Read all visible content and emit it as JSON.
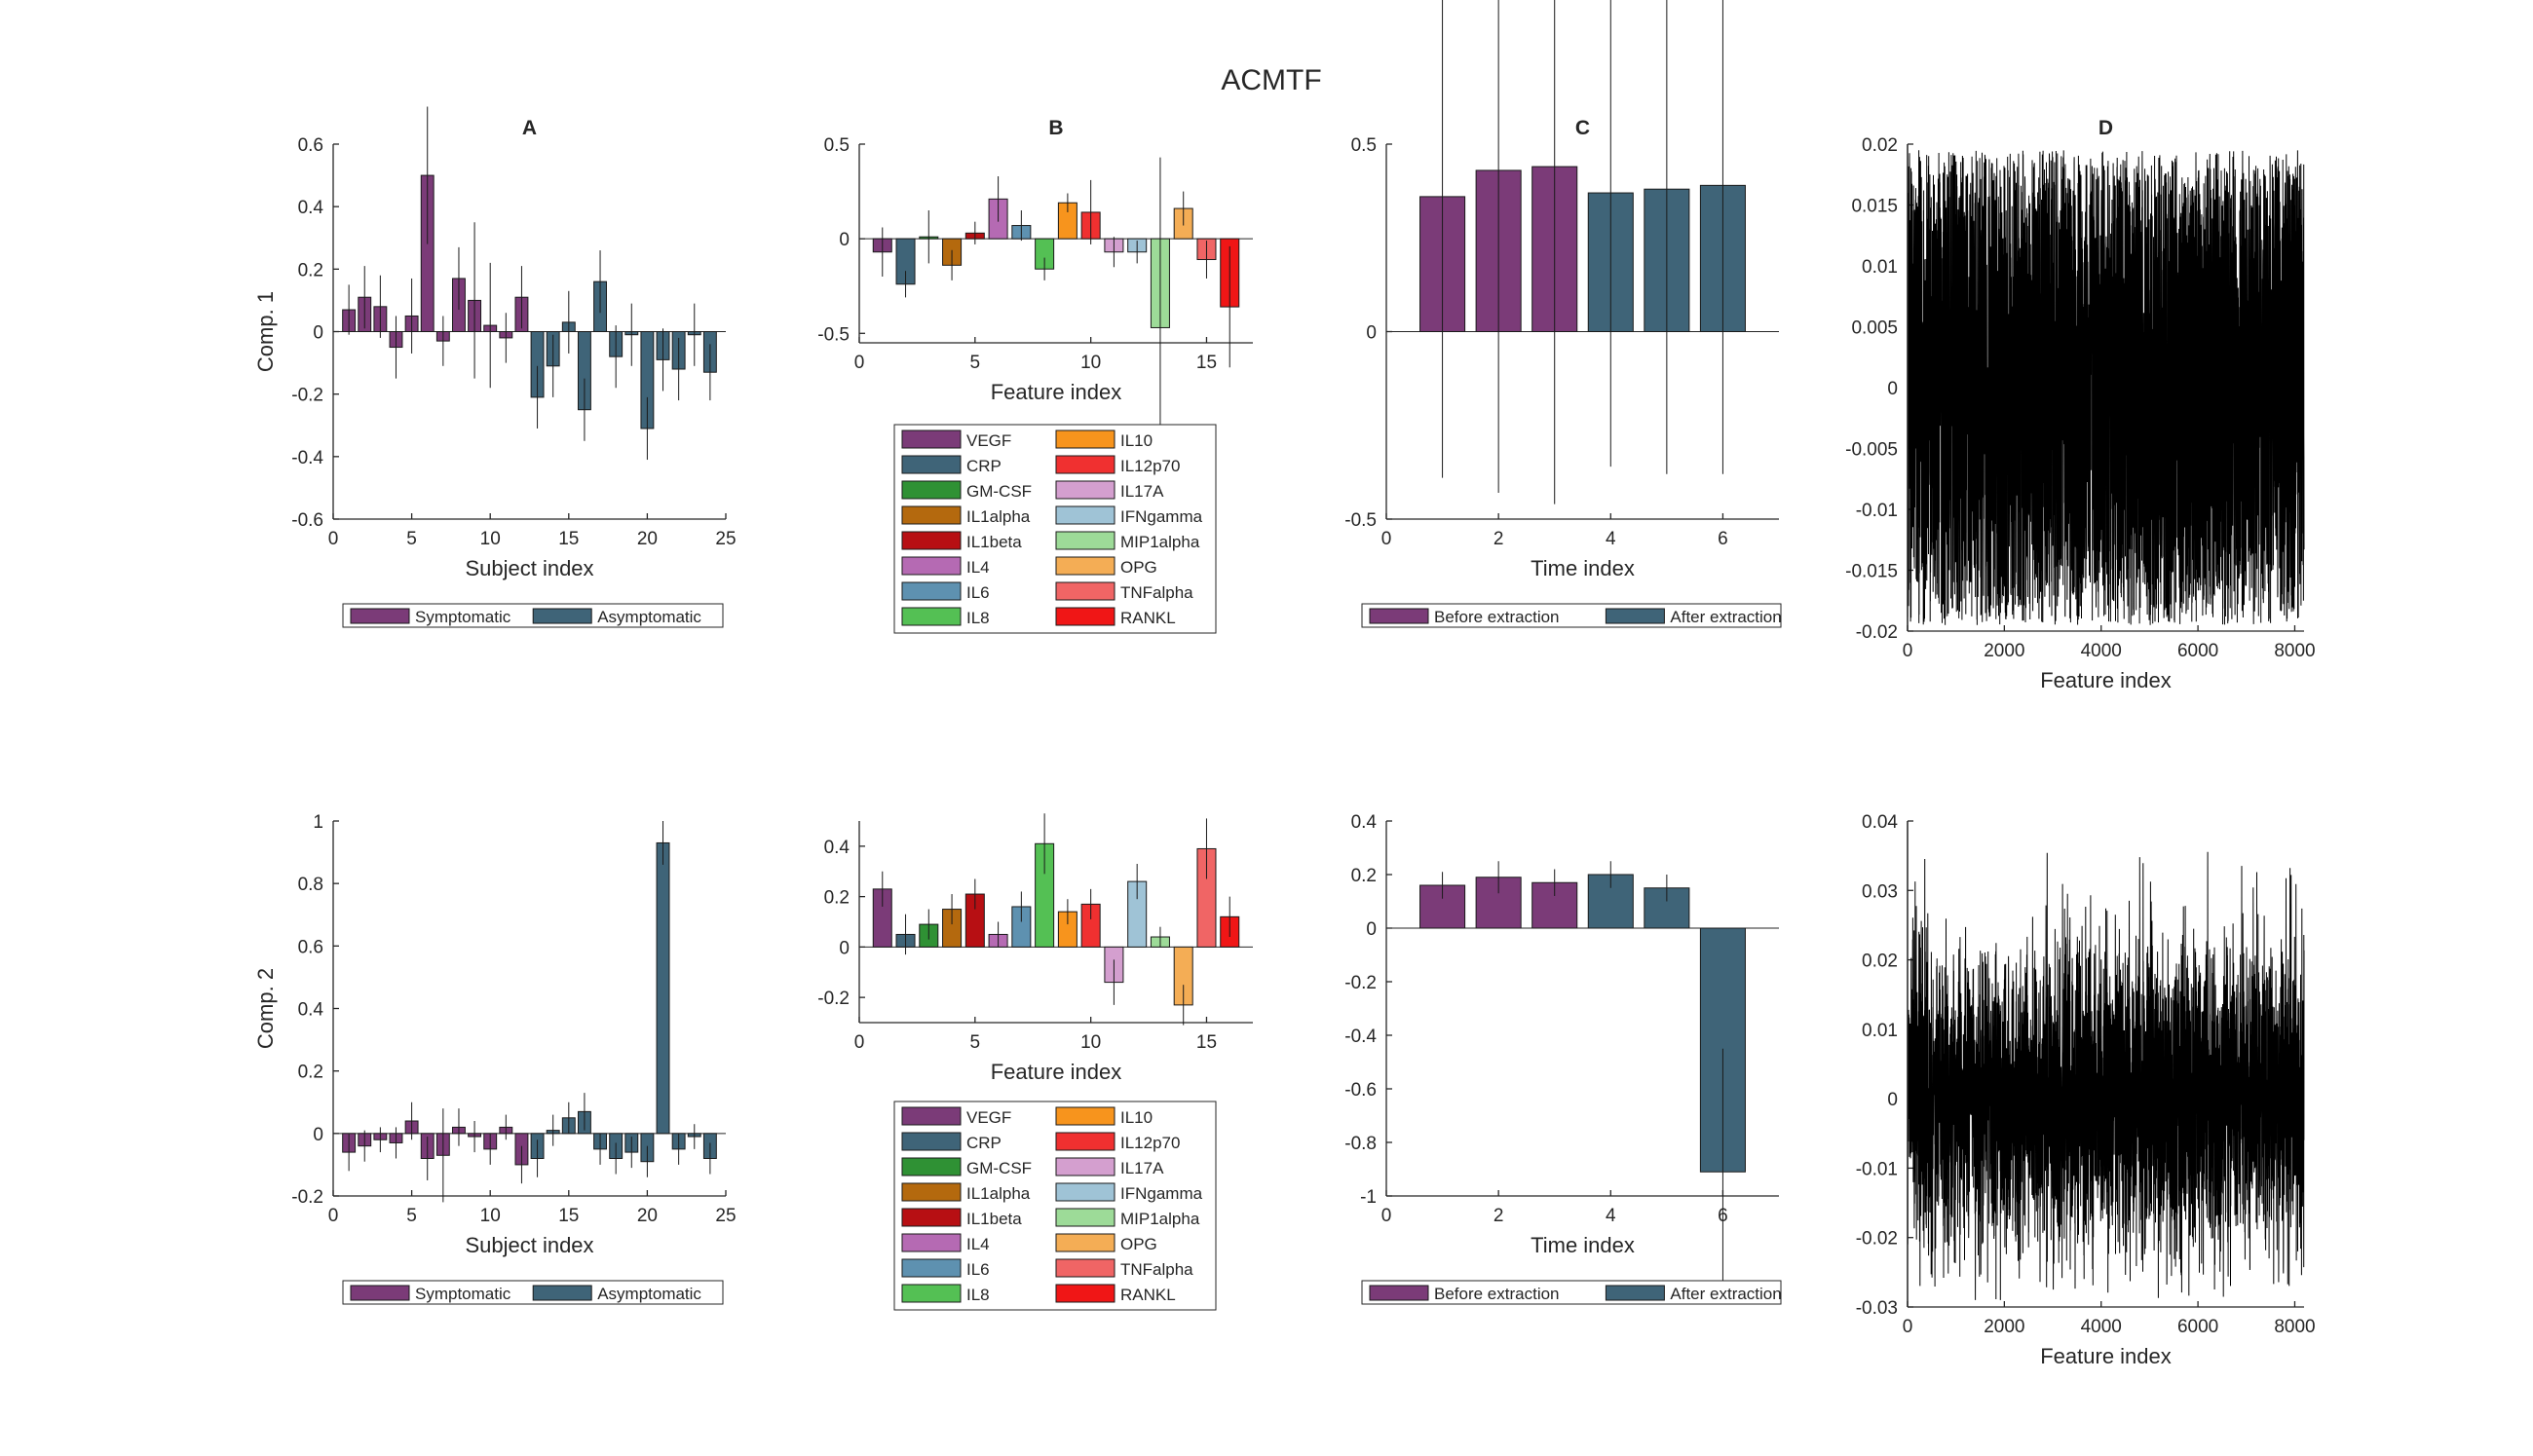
{
  "figure": {
    "title": "ACMTF"
  },
  "colors": {
    "symptomatic": "#7b3b78",
    "asymptomatic": "#3f6478",
    "before_extraction": "#7b3b78",
    "after_extraction": "#3f6478",
    "features": [
      "#7b3b78",
      "#3f6478",
      "#2f9134",
      "#b4690e",
      "#b70f13",
      "#b56ab3",
      "#5e91b0",
      "#54c054",
      "#f7941d",
      "#f03030",
      "#d49fcf",
      "#9fc3d6",
      "#9ddb98",
      "#f4ad55",
      "#f06565",
      "#f01616"
    ]
  },
  "legends": {
    "subjects": [
      "Symptomatic",
      "Asymptomatic"
    ],
    "time": [
      "Before extraction",
      "After extraction"
    ],
    "features": [
      "VEGF",
      "CRP",
      "GM-CSF",
      "IL1alpha",
      "IL1beta",
      "IL4",
      "IL6",
      "IL8",
      "IL10",
      "IL12p70",
      "IL17A",
      "IFNgamma",
      "MIP1alpha",
      "OPG",
      "TNFalpha",
      "RANKL"
    ]
  },
  "chart_data": [
    {
      "id": "A1",
      "type": "bar",
      "title": "A",
      "xlabel": "Subject index",
      "ylabel": "Comp. 1",
      "xlim": [
        0,
        25
      ],
      "ylim": [
        -0.6,
        0.6
      ],
      "xticks": [
        "0",
        "5",
        "10",
        "15",
        "20",
        "25"
      ],
      "yticks": [
        "-0.6",
        "-0.4",
        "-0.2",
        "0",
        "0.2",
        "0.4",
        "0.6"
      ],
      "x": [
        1,
        2,
        3,
        4,
        5,
        6,
        7,
        8,
        9,
        10,
        11,
        12,
        13,
        14,
        15,
        16,
        17,
        18,
        19,
        20,
        21,
        22,
        23,
        24
      ],
      "values": [
        0.07,
        0.11,
        0.08,
        -0.05,
        0.05,
        0.5,
        -0.03,
        0.17,
        0.1,
        0.02,
        -0.02,
        0.11,
        -0.21,
        -0.11,
        0.03,
        -0.25,
        0.16,
        -0.08,
        -0.01,
        -0.31,
        -0.09,
        -0.12,
        -0.01,
        -0.13
      ],
      "error": [
        0.08,
        0.1,
        0.1,
        0.1,
        0.12,
        0.22,
        0.08,
        0.1,
        0.25,
        0.2,
        0.08,
        0.1,
        0.1,
        0.1,
        0.1,
        0.1,
        0.1,
        0.1,
        0.1,
        0.1,
        0.1,
        0.1,
        0.1,
        0.09
      ],
      "groups": [
        "Symptomatic",
        "Symptomatic",
        "Symptomatic",
        "Symptomatic",
        "Symptomatic",
        "Symptomatic",
        "Symptomatic",
        "Symptomatic",
        "Symptomatic",
        "Symptomatic",
        "Symptomatic",
        "Symptomatic",
        "Asymptomatic",
        "Asymptomatic",
        "Asymptomatic",
        "Asymptomatic",
        "Asymptomatic",
        "Asymptomatic",
        "Asymptomatic",
        "Asymptomatic",
        "Asymptomatic",
        "Asymptomatic",
        "Asymptomatic",
        "Asymptomatic"
      ],
      "legend": [
        "Symptomatic",
        "Asymptomatic"
      ]
    },
    {
      "id": "B1",
      "type": "bar",
      "title": "B",
      "xlabel": "Feature index",
      "ylabel": "",
      "xlim": [
        0,
        17
      ],
      "ylim": [
        -0.55,
        0.5
      ],
      "xticks": [
        "0",
        "5",
        "10",
        "15"
      ],
      "yticks": [
        "-0.5",
        "0",
        "0.5"
      ],
      "categories": [
        "VEGF",
        "CRP",
        "GM-CSF",
        "IL1alpha",
        "IL1beta",
        "IL4",
        "IL6",
        "IL8",
        "IL10",
        "IL12p70",
        "IL17A",
        "IFNgamma",
        "MIP1alpha",
        "OPG",
        "TNFalpha",
        "RANKL"
      ],
      "x": [
        1,
        2,
        3,
        4,
        5,
        6,
        7,
        8,
        9,
        10,
        11,
        12,
        13,
        14,
        15,
        16
      ],
      "values": [
        -0.07,
        -0.24,
        0.01,
        -0.14,
        0.03,
        0.21,
        0.07,
        -0.16,
        0.19,
        0.14,
        -0.07,
        -0.07,
        -0.47,
        0.16,
        -0.11,
        -0.36
      ],
      "error": [
        0.13,
        0.07,
        0.14,
        0.08,
        0.06,
        0.12,
        0.08,
        0.06,
        0.05,
        0.17,
        0.08,
        0.06,
        0.9,
        0.09,
        0.1,
        0.32
      ],
      "legend": [
        "VEGF",
        "CRP",
        "GM-CSF",
        "IL1alpha",
        "IL1beta",
        "IL4",
        "IL6",
        "IL8",
        "IL10",
        "IL12p70",
        "IL17A",
        "IFNgamma",
        "MIP1alpha",
        "OPG",
        "TNFalpha",
        "RANKL"
      ]
    },
    {
      "id": "C1",
      "type": "bar",
      "title": "C",
      "xlabel": "Time index",
      "ylabel": "",
      "xlim": [
        0,
        7
      ],
      "ylim": [
        -0.5,
        0.5
      ],
      "xticks": [
        "0",
        "2",
        "4",
        "6"
      ],
      "yticks": [
        "-0.5",
        "0",
        "0.5"
      ],
      "x": [
        1,
        2,
        3,
        4,
        5,
        6
      ],
      "values": [
        0.36,
        0.43,
        0.44,
        0.37,
        0.38,
        0.39
      ],
      "error": [
        0.75,
        0.86,
        0.9,
        0.73,
        0.76,
        0.77
      ],
      "groups": [
        "Before extraction",
        "Before extraction",
        "Before extraction",
        "After extraction",
        "After extraction",
        "After extraction"
      ],
      "legend": [
        "Before extraction",
        "After extraction"
      ]
    },
    {
      "id": "D1",
      "type": "line",
      "title": "D",
      "xlabel": "Feature index",
      "ylabel": "",
      "xlim": [
        0,
        8192
      ],
      "ylim": [
        -0.02,
        0.02
      ],
      "xticks": [
        "0",
        "2000",
        "4000",
        "6000",
        "8000"
      ],
      "yticks": [
        "-0.02",
        "-0.015",
        "-0.01",
        "-0.005",
        "0",
        "0.005",
        "0.01",
        "0.015",
        "0.02"
      ],
      "x_range": [
        1,
        8192
      ],
      "description_values": {
        "mean": 0,
        "envelope_min": -0.0195,
        "envelope_max": 0.0195
      }
    },
    {
      "id": "A2",
      "type": "bar",
      "title": "",
      "xlabel": "Subject index",
      "ylabel": "Comp. 2",
      "xlim": [
        0,
        25
      ],
      "ylim": [
        -0.2,
        1
      ],
      "xticks": [
        "0",
        "5",
        "10",
        "15",
        "20",
        "25"
      ],
      "yticks": [
        "-0.2",
        "0",
        "0.2",
        "0.4",
        "0.6",
        "0.8",
        "1"
      ],
      "x": [
        1,
        2,
        3,
        4,
        5,
        6,
        7,
        8,
        9,
        10,
        11,
        12,
        13,
        14,
        15,
        16,
        17,
        18,
        19,
        20,
        21,
        22,
        23,
        24
      ],
      "values": [
        -0.06,
        -0.04,
        -0.02,
        -0.03,
        0.04,
        -0.08,
        -0.07,
        0.02,
        -0.01,
        -0.05,
        0.02,
        -0.1,
        -0.08,
        0.01,
        0.05,
        0.07,
        -0.05,
        -0.08,
        -0.06,
        -0.09,
        0.93,
        -0.05,
        -0.01,
        -0.08
      ],
      "error": [
        0.06,
        0.05,
        0.04,
        0.05,
        0.06,
        0.07,
        0.15,
        0.06,
        0.05,
        0.05,
        0.04,
        0.06,
        0.06,
        0.05,
        0.05,
        0.06,
        0.05,
        0.05,
        0.05,
        0.05,
        0.07,
        0.05,
        0.04,
        0.05
      ],
      "groups": [
        "Symptomatic",
        "Symptomatic",
        "Symptomatic",
        "Symptomatic",
        "Symptomatic",
        "Symptomatic",
        "Symptomatic",
        "Symptomatic",
        "Symptomatic",
        "Symptomatic",
        "Symptomatic",
        "Symptomatic",
        "Asymptomatic",
        "Asymptomatic",
        "Asymptomatic",
        "Asymptomatic",
        "Asymptomatic",
        "Asymptomatic",
        "Asymptomatic",
        "Asymptomatic",
        "Asymptomatic",
        "Asymptomatic",
        "Asymptomatic",
        "Asymptomatic"
      ],
      "legend": [
        "Symptomatic",
        "Asymptomatic"
      ]
    },
    {
      "id": "B2",
      "type": "bar",
      "title": "",
      "xlabel": "Feature index",
      "ylabel": "",
      "xlim": [
        0,
        17
      ],
      "ylim": [
        -0.3,
        0.5
      ],
      "xticks": [
        "0",
        "5",
        "10",
        "15"
      ],
      "yticks": [
        "-0.2",
        "0",
        "0.2",
        "0.4"
      ],
      "categories": [
        "VEGF",
        "CRP",
        "GM-CSF",
        "IL1alpha",
        "IL1beta",
        "IL4",
        "IL6",
        "IL8",
        "IL10",
        "IL12p70",
        "IL17A",
        "IFNgamma",
        "MIP1alpha",
        "OPG",
        "TNFalpha",
        "RANKL"
      ],
      "x": [
        1,
        2,
        3,
        4,
        5,
        6,
        7,
        8,
        9,
        10,
        11,
        12,
        13,
        14,
        15,
        16
      ],
      "values": [
        0.23,
        0.05,
        0.09,
        0.15,
        0.21,
        0.05,
        0.16,
        0.41,
        0.14,
        0.17,
        -0.14,
        0.26,
        0.04,
        -0.23,
        0.39,
        0.12
      ],
      "error": [
        0.07,
        0.08,
        0.06,
        0.06,
        0.06,
        0.05,
        0.06,
        0.12,
        0.05,
        0.06,
        0.09,
        0.07,
        0.04,
        0.08,
        0.12,
        0.08
      ],
      "legend": [
        "VEGF",
        "CRP",
        "GM-CSF",
        "IL1alpha",
        "IL1beta",
        "IL4",
        "IL6",
        "IL8",
        "IL10",
        "IL12p70",
        "IL17A",
        "IFNgamma",
        "MIP1alpha",
        "OPG",
        "TNFalpha",
        "RANKL"
      ]
    },
    {
      "id": "C2",
      "type": "bar",
      "title": "",
      "xlabel": "Time index",
      "ylabel": "",
      "xlim": [
        0,
        7
      ],
      "ylim": [
        -1,
        0.4
      ],
      "xticks": [
        "0",
        "2",
        "4",
        "6"
      ],
      "yticks": [
        "-1",
        "-0.8",
        "-0.6",
        "-0.4",
        "-0.2",
        "0",
        "0.2",
        "0.4"
      ],
      "x": [
        1,
        2,
        3,
        4,
        5,
        6
      ],
      "values": [
        0.16,
        0.19,
        0.17,
        0.2,
        0.15,
        -0.91
      ],
      "error": [
        0.05,
        0.06,
        0.05,
        0.05,
        0.05,
        0.46
      ],
      "groups": [
        "Before extraction",
        "Before extraction",
        "Before extraction",
        "After extraction",
        "After extraction",
        "After extraction"
      ],
      "legend": [
        "Before extraction",
        "After extraction"
      ]
    },
    {
      "id": "D2",
      "type": "line",
      "title": "",
      "xlabel": "Feature index",
      "ylabel": "",
      "xlim": [
        0,
        8192
      ],
      "ylim": [
        -0.03,
        0.04
      ],
      "xticks": [
        "0",
        "2000",
        "4000",
        "6000",
        "8000"
      ],
      "yticks": [
        "-0.03",
        "-0.02",
        "-0.01",
        "0",
        "0.01",
        "0.02",
        "0.03",
        "0.04"
      ],
      "x_range": [
        1,
        8192
      ],
      "description_values": {
        "mean": 0,
        "envelope_min": -0.029,
        "envelope_max": 0.036
      }
    }
  ]
}
